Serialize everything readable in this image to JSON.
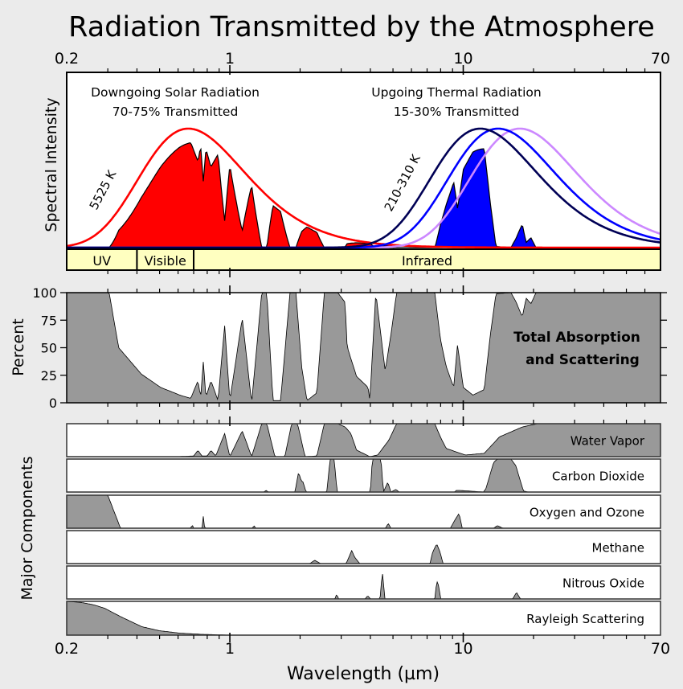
{
  "title": "Radiation Transmitted by the Atmosphere",
  "chart_data": {
    "type": "area",
    "x_scale": "log",
    "xlim": [
      0.2,
      70
    ],
    "xlabel": "Wavelength (µm)",
    "x_ticks": [
      "0.2",
      "1",
      "10",
      "70"
    ],
    "grid": false,
    "spectral": {
      "ylabel": "Spectral Intensity",
      "solar": {
        "title": "Downgoing Solar Radiation",
        "subtitle": "70-75% Transmitted",
        "temperature_label": "5525 K",
        "temperature_K": 5525,
        "curve_color": "#ff0000",
        "fill_color": "#ff0000"
      },
      "thermal": {
        "title": "Upgoing Thermal Radiation",
        "subtitle": "15-30% Transmitted",
        "temperature_label": "210-310 K",
        "curves": [
          {
            "temperature_K": 210,
            "color": "#cc88ff"
          },
          {
            "temperature_K": 260,
            "color": "#0000ff"
          },
          {
            "temperature_K": 310,
            "color": "#000055"
          }
        ],
        "fill_color": "#0000ff"
      },
      "bands": [
        {
          "label": "UV",
          "range": [
            0.2,
            0.4
          ]
        },
        {
          "label": "Visible",
          "range": [
            0.4,
            0.7
          ]
        },
        {
          "label": "Infrared",
          "range": [
            0.7,
            70
          ]
        }
      ],
      "band_color": "#ffffc0"
    },
    "total": {
      "ylabel": "Percent",
      "label_lines": [
        "Total Absorption",
        "and Scattering"
      ],
      "yticks": [
        "0",
        "25",
        "50",
        "75",
        "100"
      ],
      "ylim": [
        0,
        100
      ],
      "fill_color": "#999999",
      "points": [
        [
          0.2,
          100
        ],
        [
          0.304,
          100
        ],
        [
          0.334,
          50
        ],
        [
          0.418,
          26
        ],
        [
          0.505,
          14
        ],
        [
          0.61,
          7
        ],
        [
          0.68,
          4
        ],
        [
          0.73,
          20
        ],
        [
          0.75,
          5
        ],
        [
          0.77,
          38
        ],
        [
          0.79,
          5
        ],
        [
          0.83,
          20
        ],
        [
          0.89,
          2
        ],
        [
          0.95,
          70
        ],
        [
          1.0,
          2
        ],
        [
          1.13,
          77
        ],
        [
          1.24,
          0
        ],
        [
          1.37,
          100
        ],
        [
          1.44,
          100
        ],
        [
          1.53,
          2
        ],
        [
          1.65,
          2
        ],
        [
          1.81,
          100
        ],
        [
          1.92,
          100
        ],
        [
          2.03,
          33
        ],
        [
          2.14,
          2
        ],
        [
          2.36,
          9
        ],
        [
          2.54,
          100
        ],
        [
          2.9,
          100
        ],
        [
          3.12,
          91
        ],
        [
          3.18,
          51
        ],
        [
          3.49,
          24
        ],
        [
          3.91,
          14
        ],
        [
          3.98,
          2
        ],
        [
          4.22,
          100
        ],
        [
          4.63,
          29
        ],
        [
          4.9,
          62
        ],
        [
          5.18,
          100
        ],
        [
          7.55,
          100
        ],
        [
          7.98,
          58
        ],
        [
          8.45,
          33
        ],
        [
          9.1,
          14
        ],
        [
          9.45,
          53
        ],
        [
          10,
          14
        ],
        [
          11,
          7
        ],
        [
          12.3,
          12
        ],
        [
          13,
          58
        ],
        [
          13.8,
          99
        ],
        [
          16,
          100
        ],
        [
          16.8,
          92
        ],
        [
          17.9,
          78
        ],
        [
          18.6,
          95
        ],
        [
          19.5,
          90
        ],
        [
          20.5,
          100
        ],
        [
          70,
          100
        ]
      ]
    },
    "components": {
      "ylabel": "Major Components",
      "fill_color": "#999999",
      "series": [
        {
          "name": "Water Vapor",
          "points": [
            [
              0.2,
              0
            ],
            [
              0.59,
              0
            ],
            [
              0.7,
              2
            ],
            [
              0.73,
              19
            ],
            [
              0.76,
              2
            ],
            [
              0.8,
              2
            ],
            [
              0.83,
              19
            ],
            [
              0.87,
              2
            ],
            [
              0.95,
              70
            ],
            [
              1.0,
              0
            ],
            [
              1.13,
              78
            ],
            [
              1.24,
              0
            ],
            [
              1.37,
              100
            ],
            [
              1.44,
              100
            ],
            [
              1.56,
              0
            ],
            [
              1.72,
              0
            ],
            [
              1.84,
              100
            ],
            [
              1.95,
              100
            ],
            [
              2.1,
              0
            ],
            [
              2.36,
              2
            ],
            [
              2.54,
              100
            ],
            [
              2.9,
              100
            ],
            [
              3.12,
              90
            ],
            [
              3.3,
              70
            ],
            [
              3.49,
              20
            ],
            [
              3.98,
              0
            ],
            [
              4.3,
              5
            ],
            [
              4.8,
              50
            ],
            [
              5.18,
              100
            ],
            [
              7.55,
              100
            ],
            [
              7.98,
              60
            ],
            [
              8.45,
              25
            ],
            [
              10.2,
              5
            ],
            [
              12.3,
              10
            ],
            [
              14.3,
              60
            ],
            [
              17.9,
              90
            ],
            [
              20.8,
              100
            ],
            [
              70,
              100
            ]
          ]
        },
        {
          "name": "Carbon Dioxide",
          "points": [
            [
              0.2,
              0
            ],
            [
              1.4,
              0
            ],
            [
              1.43,
              5
            ],
            [
              1.46,
              0
            ],
            [
              1.9,
              0
            ],
            [
              1.97,
              60
            ],
            [
              2.02,
              35
            ],
            [
              2.06,
              30
            ],
            [
              2.12,
              0
            ],
            [
              2.6,
              0
            ],
            [
              2.69,
              100
            ],
            [
              2.8,
              100
            ],
            [
              2.88,
              0
            ],
            [
              4.0,
              0
            ],
            [
              4.08,
              100
            ],
            [
              4.44,
              100
            ],
            [
              4.55,
              0
            ],
            [
              4.75,
              30
            ],
            [
              4.9,
              0
            ],
            [
              5.15,
              8
            ],
            [
              5.3,
              0
            ],
            [
              9.2,
              0
            ],
            [
              9.3,
              5
            ],
            [
              9.6,
              5
            ],
            [
              12.2,
              0
            ],
            [
              12.5,
              10
            ],
            [
              13.5,
              90
            ],
            [
              14,
              100
            ],
            [
              16,
              100
            ],
            [
              16.8,
              80
            ],
            [
              18.1,
              3
            ],
            [
              19,
              0
            ],
            [
              70,
              0
            ]
          ]
        },
        {
          "name": "Oxygen and Ozone",
          "points": [
            [
              0.2,
              100
            ],
            [
              0.3,
              100
            ],
            [
              0.34,
              0
            ],
            [
              0.68,
              0
            ],
            [
              0.69,
              10
            ],
            [
              0.7,
              0
            ],
            [
              0.76,
              0
            ],
            [
              0.77,
              38
            ],
            [
              0.78,
              0
            ],
            [
              1.25,
              0
            ],
            [
              1.27,
              8
            ],
            [
              1.29,
              0
            ],
            [
              4.65,
              0
            ],
            [
              4.77,
              15
            ],
            [
              4.9,
              0
            ],
            [
              8.8,
              0
            ],
            [
              9.3,
              30
            ],
            [
              9.6,
              45
            ],
            [
              9.9,
              0
            ],
            [
              13.5,
              0
            ],
            [
              14,
              8
            ],
            [
              14.8,
              0
            ],
            [
              70,
              0
            ]
          ]
        },
        {
          "name": "Methane",
          "points": [
            [
              0.2,
              0
            ],
            [
              2.2,
              0
            ],
            [
              2.31,
              10
            ],
            [
              2.45,
              0
            ],
            [
              3.15,
              0
            ],
            [
              3.24,
              20
            ],
            [
              3.33,
              40
            ],
            [
              3.42,
              20
            ],
            [
              3.6,
              0
            ],
            [
              7.2,
              0
            ],
            [
              7.4,
              35
            ],
            [
              7.7,
              60
            ],
            [
              7.95,
              35
            ],
            [
              8.2,
              0
            ],
            [
              70,
              0
            ]
          ]
        },
        {
          "name": "Nitrous Oxide",
          "points": [
            [
              0.2,
              0
            ],
            [
              2.82,
              0
            ],
            [
              2.87,
              15
            ],
            [
              2.92,
              0
            ],
            [
              3.8,
              0
            ],
            [
              3.9,
              10
            ],
            [
              4.0,
              0
            ],
            [
              4.4,
              0
            ],
            [
              4.5,
              85
            ],
            [
              4.62,
              0
            ],
            [
              7.55,
              0
            ],
            [
              7.7,
              55
            ],
            [
              7.85,
              40
            ],
            [
              8.0,
              0
            ],
            [
              16.3,
              0
            ],
            [
              16.9,
              20
            ],
            [
              17.6,
              0
            ],
            [
              70,
              0
            ]
          ]
        },
        {
          "name": "Rayleigh Scattering",
          "points": [
            [
              0.2,
              100
            ],
            [
              0.23,
              97
            ],
            [
              0.26,
              90
            ],
            [
              0.29,
              80
            ],
            [
              0.34,
              55
            ],
            [
              0.42,
              25
            ],
            [
              0.5,
              13
            ],
            [
              0.61,
              6
            ],
            [
              0.75,
              2.5
            ],
            [
              1.0,
              0
            ],
            [
              70,
              0
            ]
          ]
        }
      ]
    }
  }
}
